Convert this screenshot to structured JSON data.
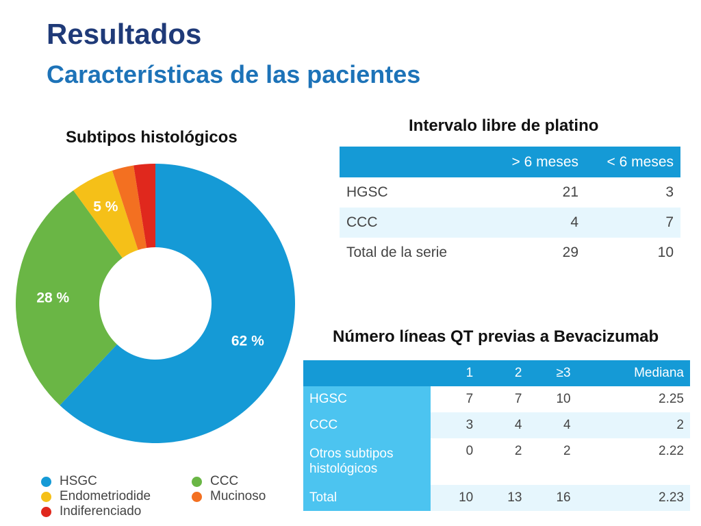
{
  "header": {
    "title": "Resultados",
    "subtitle": "Características de las pacientes"
  },
  "donut_section": {
    "title": "Subtipos histológicos"
  },
  "pfi_section": {
    "title": "Intervalo libre de platino",
    "columns": [
      "",
      "> 6 meses",
      "< 6 meses"
    ],
    "rows": [
      {
        "label": "HGSC",
        "values": [
          "21",
          "3"
        ]
      },
      {
        "label": "CCC",
        "values": [
          "4",
          "7"
        ]
      },
      {
        "label": "Total de la serie",
        "values": [
          "29",
          "10"
        ]
      }
    ]
  },
  "qt_section": {
    "title": "Número líneas QT previas a Bevacizumab",
    "columns": [
      "",
      "1",
      "2",
      "≥3",
      "Mediana"
    ],
    "rows": [
      {
        "label": "HGSC",
        "values": [
          "7",
          "7",
          "10",
          "2.25"
        ]
      },
      {
        "label": "CCC",
        "values": [
          "3",
          "4",
          "4",
          "2"
        ]
      },
      {
        "label": "Otros subtipos histológicos",
        "values": [
          "0",
          "2",
          "2",
          "2.22"
        ]
      },
      {
        "label": "Total",
        "values": [
          "10",
          "13",
          "16",
          "2.23"
        ]
      }
    ]
  },
  "legend": [
    {
      "label": "HSGC",
      "color": "#159ad6"
    },
    {
      "label": "CCC",
      "color": "#6ab645"
    },
    {
      "label": "Endometriodide",
      "color": "#f5c018"
    },
    {
      "label": "Mucinoso",
      "color": "#f37021"
    },
    {
      "label": "Indiferenciado",
      "color": "#e0281d"
    }
  ],
  "chart_data": {
    "type": "pie",
    "title": "Subtipos histológicos",
    "categories": [
      "HSGC",
      "CCC",
      "Endometriodide",
      "Mucinoso",
      "Indiferenciado"
    ],
    "values": [
      62,
      28,
      5,
      2.5,
      2.5
    ],
    "labels": [
      "62 %",
      "28 %",
      "5 %",
      "",
      ""
    ],
    "colors": [
      "#159ad6",
      "#6ab645",
      "#f5c018",
      "#f37021",
      "#e0281d"
    ],
    "donut": true,
    "legend": "bottom"
  }
}
